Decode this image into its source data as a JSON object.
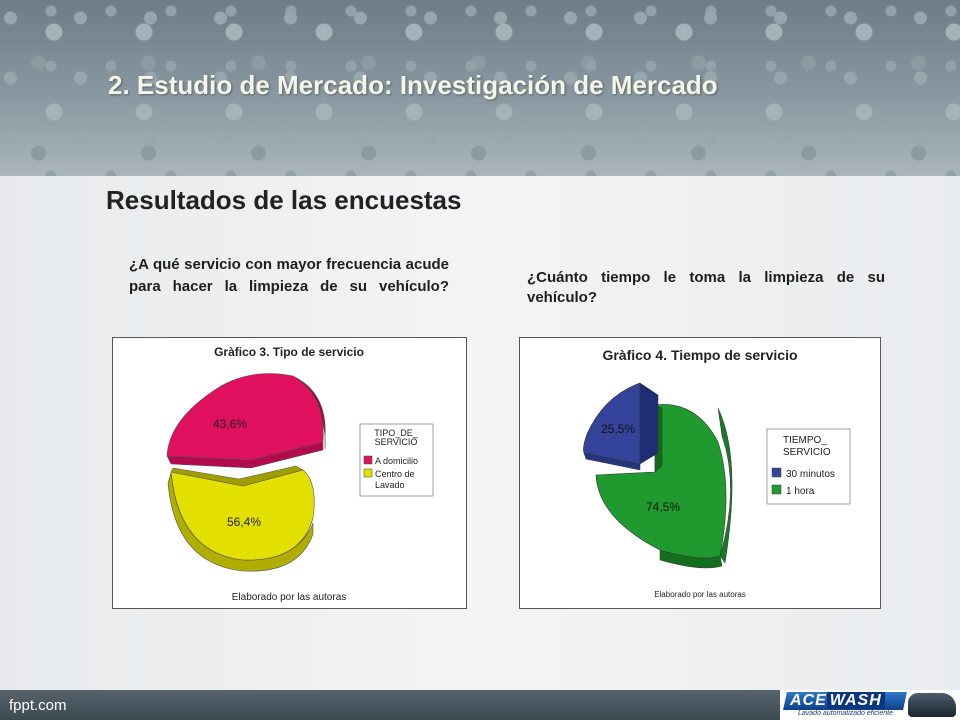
{
  "slide": {
    "title": "2. Estudio de Mercado: Investigación de Mercado",
    "section_title": "Resultados de las encuestas",
    "question1": "¿A qué servicio con mayor frecuencia acude para hacer la limpieza de su vehículo?",
    "question2": "¿Cuánto tiempo le toma la limpieza de su vehículo?"
  },
  "footer": {
    "brand": "fppt.com",
    "logo_ace": "ACE",
    "logo_wash": "WASH",
    "logo_tagline": "Lavado automatizado eficiente"
  },
  "chart_data": [
    {
      "type": "pie",
      "title": "Gràfico 3. Tipo de servicio",
      "legend_title": [
        "TIPO_DE_",
        "SERVICIO"
      ],
      "legend_position": "right",
      "source": "Elaborado por las autoras",
      "categories": [
        "A domicilio",
        "Centro de Lavado"
      ],
      "values": [
        43.6,
        56.4
      ],
      "labels": [
        "43,6%",
        "56,4%"
      ],
      "colors": [
        "#e0105f",
        "#e2e000"
      ],
      "exploded": true,
      "style": "3d"
    },
    {
      "type": "pie",
      "title": "Gràfico 4. Tiempo de servicio",
      "legend_title": [
        "TIEMPO_",
        "SERVICIO"
      ],
      "legend_position": "right",
      "source": "Elaborado por las autoras",
      "categories": [
        "30 minutos",
        "1 hora"
      ],
      "values": [
        25.5,
        74.5
      ],
      "labels": [
        "25,5%",
        "74,5%"
      ],
      "colors": [
        "#33449a",
        "#1f9a2f"
      ],
      "exploded": true,
      "style": "3d"
    }
  ]
}
